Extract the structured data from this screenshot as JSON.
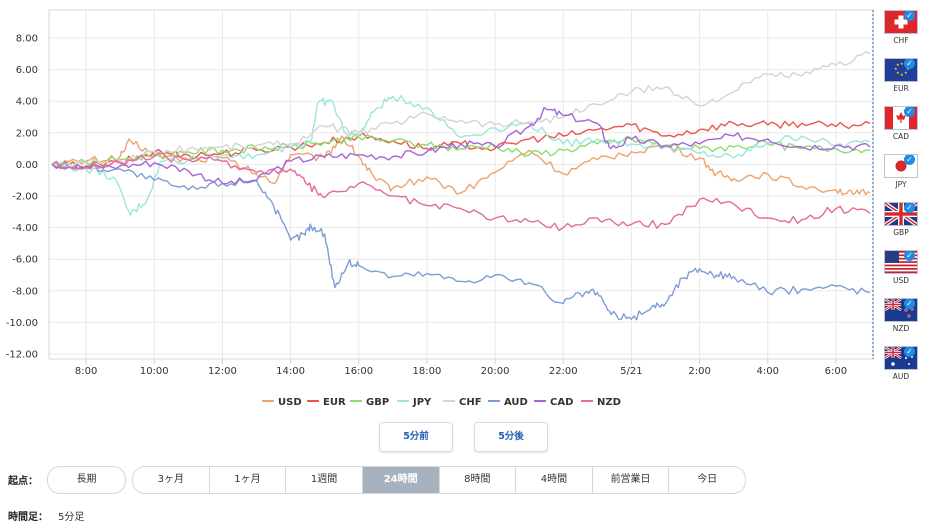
{
  "chart_data": {
    "type": "line",
    "ylim": [
      -12,
      10
    ],
    "xlim": [
      0,
      24
    ],
    "yticks": [
      "8.00",
      "6.00",
      "4.00",
      "2.00",
      "0.00",
      "-2.00",
      "-4.00",
      "-6.00",
      "-8.00",
      "-10.00",
      "-12.00"
    ],
    "xticks": [
      {
        "x": 1,
        "label": "8:00"
      },
      {
        "x": 3,
        "label": "10:00"
      },
      {
        "x": 5,
        "label": "12:00"
      },
      {
        "x": 7,
        "label": "14:00"
      },
      {
        "x": 9,
        "label": "16:00"
      },
      {
        "x": 11,
        "label": "18:00"
      },
      {
        "x": 13,
        "label": "20:00"
      },
      {
        "x": 15,
        "label": "22:00"
      },
      {
        "x": 17,
        "label": "5/21"
      },
      {
        "x": 19,
        "label": "2:00"
      },
      {
        "x": 21,
        "label": "4:00"
      },
      {
        "x": 23,
        "label": "6:00"
      }
    ],
    "grid": true,
    "legend_position": "bottom",
    "series": [
      {
        "name": "USD",
        "color": "#eea36b",
        "points": [
          [
            0,
            0
          ],
          [
            1,
            0.2
          ],
          [
            2,
            0.5
          ],
          [
            2.3,
            1.5
          ],
          [
            3,
            0.6
          ],
          [
            4,
            0.3
          ],
          [
            5,
            0.4
          ],
          [
            6,
            -0.6
          ],
          [
            6.5,
            -1.2
          ],
          [
            7,
            0.6
          ],
          [
            8,
            0.4
          ],
          [
            8.5,
            1.8
          ],
          [
            9,
            0.5
          ],
          [
            9.5,
            -1.0
          ],
          [
            10,
            -1.5
          ],
          [
            11,
            -0.8
          ],
          [
            12,
            -1.8
          ],
          [
            13,
            -0.5
          ],
          [
            14,
            0.9
          ],
          [
            15,
            -0.6
          ],
          [
            16,
            0.3
          ],
          [
            17,
            0.8
          ],
          [
            18,
            1.2
          ],
          [
            19,
            0.4
          ],
          [
            19.5,
            -0.6
          ],
          [
            20,
            -0.9
          ],
          [
            21,
            -0.6
          ],
          [
            22,
            -1.4
          ],
          [
            23,
            -1.6
          ],
          [
            23.5,
            -1.9
          ],
          [
            24,
            -1.8
          ]
        ]
      },
      {
        "name": "EUR",
        "color": "#e8584a",
        "points": [
          [
            0,
            0
          ],
          [
            1,
            -0.1
          ],
          [
            2,
            0.1
          ],
          [
            3,
            0.8
          ],
          [
            4,
            0.6
          ],
          [
            5,
            0.7
          ],
          [
            6,
            0.9
          ],
          [
            7,
            1.1
          ],
          [
            8,
            1.4
          ],
          [
            9,
            1.8
          ],
          [
            10,
            1.5
          ],
          [
            11,
            1.0
          ],
          [
            12,
            1.3
          ],
          [
            13,
            1.0
          ],
          [
            14,
            1.6
          ],
          [
            15,
            1.8
          ],
          [
            16,
            2.2
          ],
          [
            17,
            2.5
          ],
          [
            18,
            1.8
          ],
          [
            19,
            2.2
          ],
          [
            20,
            2.6
          ],
          [
            21,
            2.5
          ],
          [
            22,
            2.6
          ],
          [
            23,
            2.4
          ],
          [
            24,
            2.6
          ]
        ]
      },
      {
        "name": "GBP",
        "color": "#8ddc6e",
        "points": [
          [
            0,
            0
          ],
          [
            1,
            0.1
          ],
          [
            2,
            0.3
          ],
          [
            3,
            0.6
          ],
          [
            4,
            0.8
          ],
          [
            5,
            0.9
          ],
          [
            6,
            1.0
          ],
          [
            7,
            1.1
          ],
          [
            8,
            1.4
          ],
          [
            9,
            1.7
          ],
          [
            10,
            1.5
          ],
          [
            11,
            1.2
          ],
          [
            12,
            1.0
          ],
          [
            13,
            1.2
          ],
          [
            14,
            0.6
          ],
          [
            15,
            0.9
          ],
          [
            16,
            1.3
          ],
          [
            17,
            1.6
          ],
          [
            18,
            1.2
          ],
          [
            19,
            1.0
          ],
          [
            20,
            1.1
          ],
          [
            21,
            1.3
          ],
          [
            22,
            1.0
          ],
          [
            23,
            1.0
          ],
          [
            24,
            0.9
          ]
        ]
      },
      {
        "name": "JPY",
        "color": "#9ee5dc",
        "points": [
          [
            0,
            0
          ],
          [
            1,
            -0.3
          ],
          [
            1.8,
            -0.8
          ],
          [
            2.3,
            -3.2
          ],
          [
            2.8,
            -2.2
          ],
          [
            3.2,
            0.2
          ],
          [
            4,
            0.3
          ],
          [
            5,
            0.6
          ],
          [
            6,
            0.6
          ],
          [
            7,
            1.1
          ],
          [
            7.6,
            1.5
          ],
          [
            7.8,
            3.9
          ],
          [
            8.2,
            4.0
          ],
          [
            8.6,
            2.0
          ],
          [
            9,
            1.8
          ],
          [
            9.5,
            3.5
          ],
          [
            10,
            4.3
          ],
          [
            11,
            3.6
          ],
          [
            12,
            1.7
          ],
          [
            13,
            2.3
          ],
          [
            14,
            2.6
          ],
          [
            15,
            1.3
          ],
          [
            16,
            1.6
          ],
          [
            17,
            1.3
          ],
          [
            18,
            1.1
          ],
          [
            19,
            0.7
          ],
          [
            20,
            0.4
          ],
          [
            21,
            1.4
          ],
          [
            22,
            1.8
          ],
          [
            23,
            1.2
          ],
          [
            24,
            1.4
          ]
        ]
      },
      {
        "name": "CHF",
        "color": "#d4d4d4",
        "points": [
          [
            0,
            0
          ],
          [
            1,
            0.1
          ],
          [
            2,
            0.2
          ],
          [
            3,
            0.8
          ],
          [
            4,
            1.0
          ],
          [
            5,
            1.1
          ],
          [
            6,
            1.2
          ],
          [
            7,
            1.3
          ],
          [
            8,
            2.4
          ],
          [
            9,
            2.0
          ],
          [
            10,
            2.6
          ],
          [
            11,
            3.2
          ],
          [
            12,
            2.8
          ],
          [
            13,
            2.5
          ],
          [
            14,
            2.7
          ],
          [
            15,
            3.0
          ],
          [
            16,
            3.8
          ],
          [
            17,
            4.6
          ],
          [
            18,
            4.9
          ],
          [
            19,
            3.7
          ],
          [
            20,
            4.6
          ],
          [
            21,
            5.7
          ],
          [
            22,
            5.6
          ],
          [
            23,
            6.3
          ],
          [
            24,
            7.0
          ]
        ]
      },
      {
        "name": "AUD",
        "color": "#7e9dd6",
        "points": [
          [
            0,
            0
          ],
          [
            1,
            -0.2
          ],
          [
            2,
            -0.3
          ],
          [
            3,
            -1.0
          ],
          [
            4,
            -1.6
          ],
          [
            5,
            -1.2
          ],
          [
            6,
            -1.0
          ],
          [
            6.5,
            -2.6
          ],
          [
            7,
            -4.8
          ],
          [
            7.4,
            -4.4
          ],
          [
            7.6,
            -3.9
          ],
          [
            8,
            -4.4
          ],
          [
            8.3,
            -7.8
          ],
          [
            8.7,
            -6.2
          ],
          [
            9,
            -6.4
          ],
          [
            10,
            -7.1
          ],
          [
            11,
            -6.9
          ],
          [
            12,
            -7.4
          ],
          [
            13,
            -7.0
          ],
          [
            14,
            -7.5
          ],
          [
            15,
            -8.8
          ],
          [
            15.5,
            -8.2
          ],
          [
            16,
            -8.1
          ],
          [
            16.4,
            -9.5
          ],
          [
            17,
            -9.8
          ],
          [
            17.6,
            -9.0
          ],
          [
            18,
            -8.8
          ],
          [
            18.5,
            -7.2
          ],
          [
            19,
            -6.6
          ],
          [
            19.5,
            -7.0
          ],
          [
            20,
            -7.1
          ],
          [
            21,
            -8.1
          ],
          [
            22,
            -7.9
          ],
          [
            23,
            -7.7
          ],
          [
            24,
            -8.1
          ]
        ]
      },
      {
        "name": "CAD",
        "color": "#a466d8",
        "points": [
          [
            0,
            0
          ],
          [
            1,
            -0.2
          ],
          [
            2,
            -0.1
          ],
          [
            3,
            0.1
          ],
          [
            4,
            -0.4
          ],
          [
            5,
            -1.2
          ],
          [
            6,
            -1.0
          ],
          [
            7,
            0.2
          ],
          [
            8,
            0.5
          ],
          [
            9,
            0.6
          ],
          [
            10,
            0.5
          ],
          [
            11,
            0.8
          ],
          [
            12,
            1.3
          ],
          [
            13,
            1.1
          ],
          [
            14,
            2.4
          ],
          [
            14.5,
            3.5
          ],
          [
            15,
            3.1
          ],
          [
            16,
            2.6
          ],
          [
            16.4,
            1.0
          ],
          [
            17,
            1.6
          ],
          [
            18,
            1.2
          ],
          [
            19,
            1.3
          ],
          [
            20,
            1.8
          ],
          [
            21,
            1.6
          ],
          [
            22,
            1.1
          ],
          [
            23,
            1.2
          ],
          [
            24,
            1.1
          ]
        ]
      },
      {
        "name": "NZD",
        "color": "#e46aa0",
        "points": [
          [
            0,
            0
          ],
          [
            1,
            -0.2
          ],
          [
            2,
            0.1
          ],
          [
            3,
            0.5
          ],
          [
            4,
            0.3
          ],
          [
            5,
            0.2
          ],
          [
            6,
            -0.5
          ],
          [
            7,
            -0.3
          ],
          [
            7.5,
            -1.3
          ],
          [
            8,
            -2.1
          ],
          [
            9,
            -1.2
          ],
          [
            10,
            -2.0
          ],
          [
            11,
            -2.6
          ],
          [
            12,
            -2.8
          ],
          [
            13,
            -3.4
          ],
          [
            14,
            -3.6
          ],
          [
            15,
            -4.0
          ],
          [
            16,
            -3.4
          ],
          [
            17,
            -3.8
          ],
          [
            18,
            -3.8
          ],
          [
            19,
            -2.2
          ],
          [
            20,
            -2.5
          ],
          [
            21,
            -3.4
          ],
          [
            22,
            -3.5
          ],
          [
            23,
            -2.8
          ],
          [
            24,
            -3.1
          ]
        ]
      }
    ]
  },
  "flags": [
    {
      "code": "CHF",
      "icon": "swiss-flag",
      "checked": true
    },
    {
      "code": "EUR",
      "icon": "eu-flag",
      "checked": true
    },
    {
      "code": "CAD",
      "icon": "canada-flag",
      "checked": true
    },
    {
      "code": "JPY",
      "icon": "japan-flag",
      "checked": true
    },
    {
      "code": "GBP",
      "icon": "uk-flag",
      "checked": true
    },
    {
      "code": "USD",
      "icon": "us-flag",
      "checked": true
    },
    {
      "code": "NZD",
      "icon": "nz-flag",
      "checked": true
    },
    {
      "code": "AUD",
      "icon": "australia-flag",
      "checked": true
    }
  ],
  "nav": {
    "prev_label": "5分前",
    "next_label": "5分後"
  },
  "range": {
    "label": "起点：",
    "long_label": "長期",
    "options": [
      "3ヶ月",
      "1ヶ月",
      "1週間",
      "24時間",
      "8時間",
      "4時間",
      "前営業日",
      "今日"
    ],
    "active": "24時間"
  },
  "timeframe": {
    "label": "時間足：",
    "value": "5分足"
  },
  "colors": {
    "accent": "#1f5fb5",
    "active_segment": "#a6b2bd",
    "grid": "#e6e6e6"
  }
}
